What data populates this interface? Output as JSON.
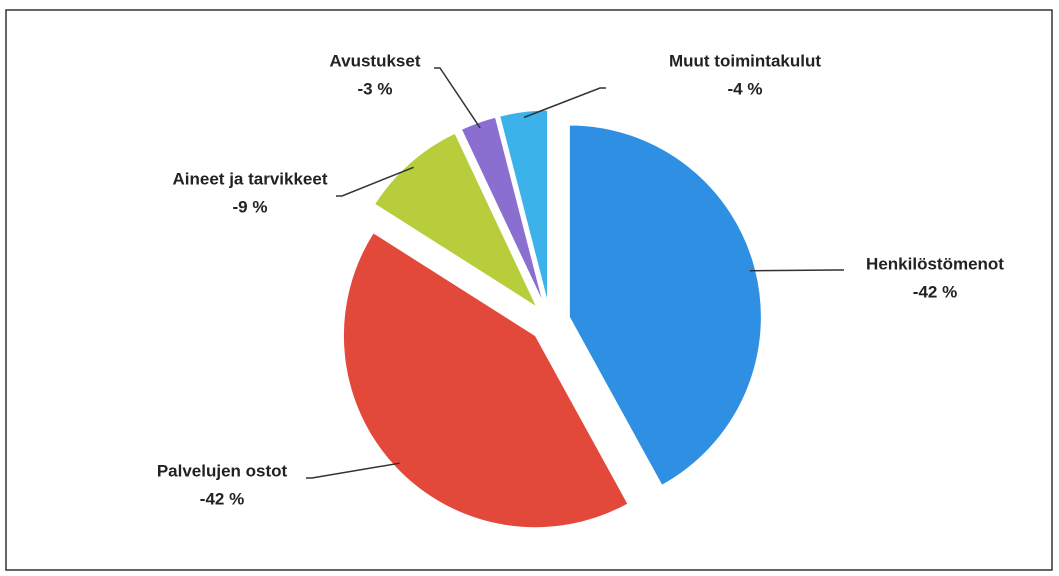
{
  "chart_data": {
    "type": "pie",
    "categories": [
      "Henkilöstömenot",
      "Palvelujen ostot",
      "Aineet ja tarvikkeet",
      "Avustukset",
      "Muut toimintakulut"
    ],
    "values": [
      -42,
      -42,
      -9,
      -3,
      -4
    ],
    "value_labels": [
      "-42 %",
      "-42 %",
      "-9 %",
      "-3 %",
      "-4 %"
    ],
    "colors": [
      "#2f8fe3",
      "#e2493b",
      "#b7cd3c",
      "#8a6fd0",
      "#3bb2ea"
    ]
  }
}
